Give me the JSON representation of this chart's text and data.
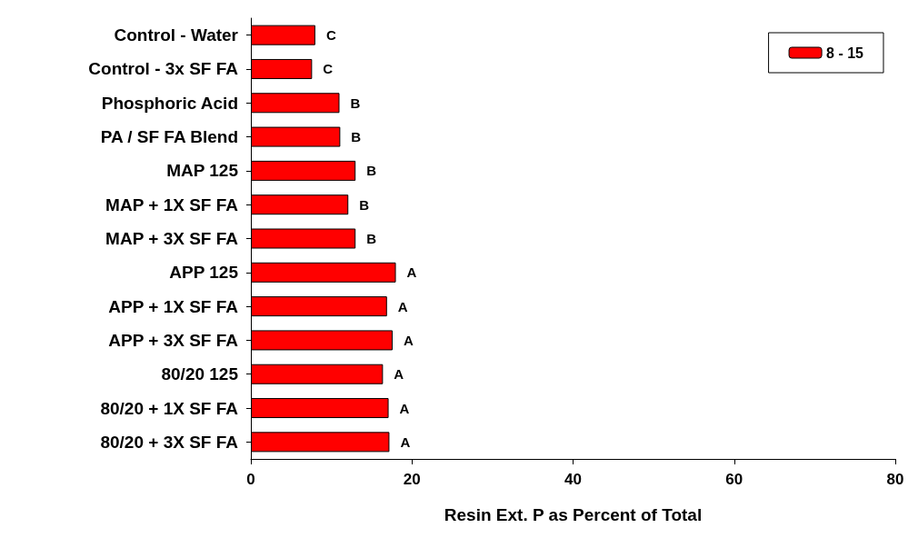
{
  "chart_data": {
    "type": "bar",
    "orientation": "horizontal",
    "xlabel": "Resin Ext. P as Percent of Total",
    "categories": [
      "Control - Water",
      "Control - 3x SF FA",
      "Phosphoric Acid",
      "PA / SF FA Blend",
      "MAP 125",
      "MAP + 1X SF FA",
      "MAP + 3X SF FA",
      "APP 125",
      "APP + 1X SF FA",
      "APP + 3X SF FA",
      "80/20 125",
      "80/20 + 1X SF FA",
      "80/20 + 3X SF FA"
    ],
    "series": [
      {
        "name": "8 - 15",
        "color": "#ff0000",
        "values": [
          8.0,
          7.6,
          11.0,
          11.1,
          13.0,
          12.1,
          13.0,
          18.0,
          16.9,
          17.6,
          16.4,
          17.1,
          17.2
        ],
        "value_labels": [
          "C",
          "C",
          "B",
          "B",
          "B",
          "B",
          "B",
          "A",
          "A",
          "A",
          "A",
          "A",
          "A"
        ]
      }
    ],
    "xlim": [
      0,
      80
    ],
    "xticks": [
      0,
      20,
      40,
      60,
      80
    ],
    "grid": false,
    "legend": "top right"
  }
}
